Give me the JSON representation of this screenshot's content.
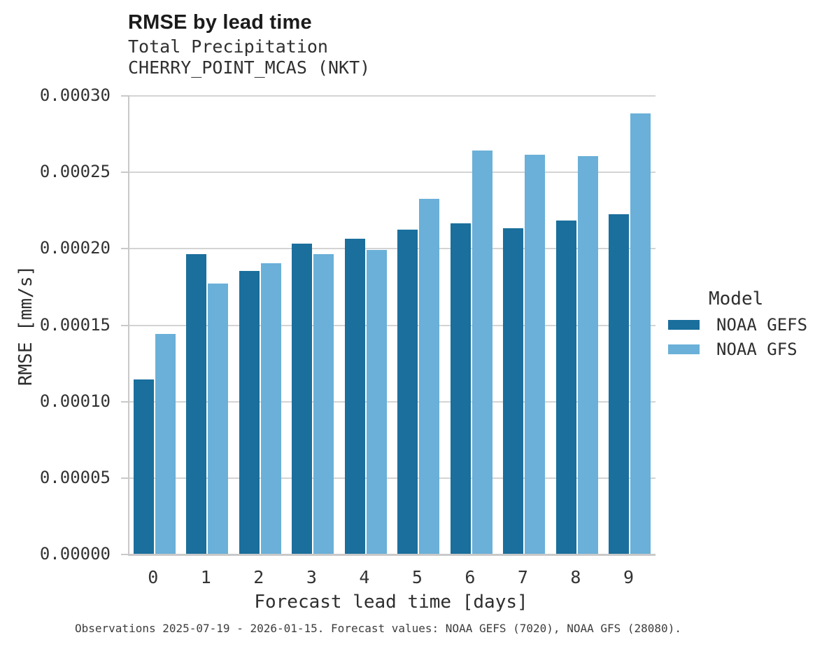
{
  "header": {
    "title": "RMSE by lead time",
    "subtitle_line1": "Total Precipitation",
    "subtitle_line2": "CHERRY_POINT_MCAS (NKT)"
  },
  "chart_data": {
    "type": "bar",
    "title": "RMSE by lead time",
    "subtitle": [
      "Total Precipitation",
      "CHERRY_POINT_MCAS (NKT)"
    ],
    "categories": [
      "0",
      "1",
      "2",
      "3",
      "4",
      "5",
      "6",
      "7",
      "8",
      "9"
    ],
    "series": [
      {
        "name": "NOAA GEFS",
        "color": "#1a6f9c",
        "values": [
          0.000114,
          0.000196,
          0.000185,
          0.000203,
          0.000206,
          0.000212,
          0.000216,
          0.000213,
          0.000218,
          0.000222
        ]
      },
      {
        "name": "NOAA GFS",
        "color": "#6ab0d8",
        "values": [
          0.000144,
          0.000177,
          0.00019,
          0.000196,
          0.000199,
          0.000232,
          0.000264,
          0.000261,
          0.00026,
          0.000288
        ]
      }
    ],
    "xlabel": "Forecast lead time [days]",
    "ylabel": "RMSE [mm/s]",
    "ylim": [
      0,
      0.0003
    ],
    "yticks": [
      0,
      5e-05,
      0.0001,
      0.00015,
      0.0002,
      0.00025,
      0.0003
    ],
    "ytick_labels": [
      "0.00000",
      "0.00005",
      "0.00010",
      "0.00015",
      "0.00020",
      "0.00025",
      "0.00030"
    ],
    "grid": "horizontal",
    "legend_title": "Model",
    "legend_position": "right"
  },
  "legend": {
    "title": "Model",
    "entries": [
      {
        "label": "NOAA GEFS",
        "color": "#1a6f9c"
      },
      {
        "label": "NOAA GFS",
        "color": "#6ab0d8"
      }
    ]
  },
  "caption": "Observations 2025-07-19 - 2026-01-15. Forecast values: NOAA GEFS (7020), NOAA GFS (28080)."
}
